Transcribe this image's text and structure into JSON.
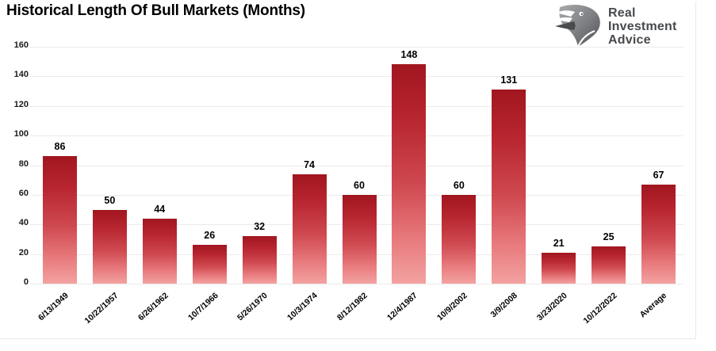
{
  "header": {
    "title": "Historical Length Of Bull Markets (Months)"
  },
  "logo": {
    "icon": "eagle-icon",
    "lines": [
      "Real",
      "Investment",
      "Advice"
    ],
    "text_color": "#474a4d"
  },
  "chart_data": {
    "type": "bar",
    "title": "Historical Length Of Bull Markets (Months)",
    "categories": [
      "6/13/1949",
      "10/22/1957",
      "6/26/1962",
      "10/7/1966",
      "5/26/1970",
      "10/3/1974",
      "8/12/1982",
      "12/4/1987",
      "10/9/2002",
      "3/9/2008",
      "3/23/2020",
      "10/12/2022",
      "Average"
    ],
    "values": [
      86,
      50,
      44,
      26,
      32,
      74,
      60,
      148,
      60,
      131,
      21,
      25,
      67
    ],
    "xlabel": "",
    "ylabel": "",
    "ylim": [
      0,
      160
    ],
    "yticks": [
      0,
      20,
      40,
      60,
      80,
      100,
      120,
      140,
      160
    ],
    "grid": "horizontal",
    "legend": "none",
    "data_labels": true,
    "bar_color_top": "#a1161f",
    "bar_color_bottom": "#f3a2a1",
    "gridline_color": "#ebebeb",
    "label_color": "#000000"
  }
}
